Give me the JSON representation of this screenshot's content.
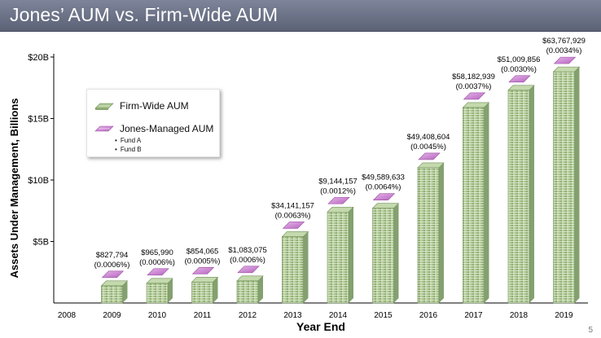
{
  "header": {
    "title": "Jones’ AUM vs. Firm-Wide AUM"
  },
  "page_number": "5",
  "legend": {
    "firm_wide": "Firm-Wide AUM",
    "jones_managed": "Jones-Managed AUM",
    "funds": [
      "Fund A",
      "Fund B"
    ]
  },
  "colors": {
    "firm_cash": "#a9c48d",
    "firm_cash_dark": "#6f8f57",
    "jones_cash": "#d38ad9",
    "jones_cash_dark": "#9a4fa3",
    "title_bar": "#6b7186"
  },
  "chart_data": {
    "type": "bar",
    "title": "",
    "xlabel": "Year End",
    "ylabel": "Assets Under Management, Billions",
    "ylim": [
      0,
      20
    ],
    "yticks": [
      5,
      10,
      15,
      20
    ],
    "ytick_labels": [
      "$5B",
      "$10B",
      "$15B",
      "$20B"
    ],
    "categories": [
      "2008",
      "2009",
      "2010",
      "2011",
      "2012",
      "2013",
      "2014",
      "2015",
      "2016",
      "2017",
      "2018",
      "2019"
    ],
    "series": [
      {
        "name": "Firm-Wide AUM",
        "values": [
          0,
          1.4,
          1.6,
          1.7,
          1.8,
          5.4,
          7.4,
          7.7,
          11.0,
          15.9,
          17.3,
          18.8
        ]
      },
      {
        "name": "Jones-Managed AUM",
        "values": [
          null,
          827794,
          965990,
          854065,
          1083075,
          34141157,
          9144157,
          49589633,
          49408604,
          58182939,
          51009856,
          63767929
        ],
        "value_labels": [
          "",
          "$827,794",
          "$965,990",
          "$854,065",
          "$1,083,075",
          "$34,141,157",
          "$9,144,157",
          "$49,589,633",
          "$49,408,604",
          "$58,182,939",
          "$51,009,856",
          "$63,767,929"
        ],
        "pct_labels": [
          "",
          "(0.0006%)",
          "(0.0006%)",
          "(0.0005%)",
          "(0.0006%)",
          "(0.0063%)",
          "(0.0012%)",
          "(0.0064%)",
          "(0.0045%)",
          "(0.0037%)",
          "(0.0030%)",
          "(0.0034%)"
        ]
      }
    ],
    "grid": false,
    "legend_position": "upper-left"
  }
}
